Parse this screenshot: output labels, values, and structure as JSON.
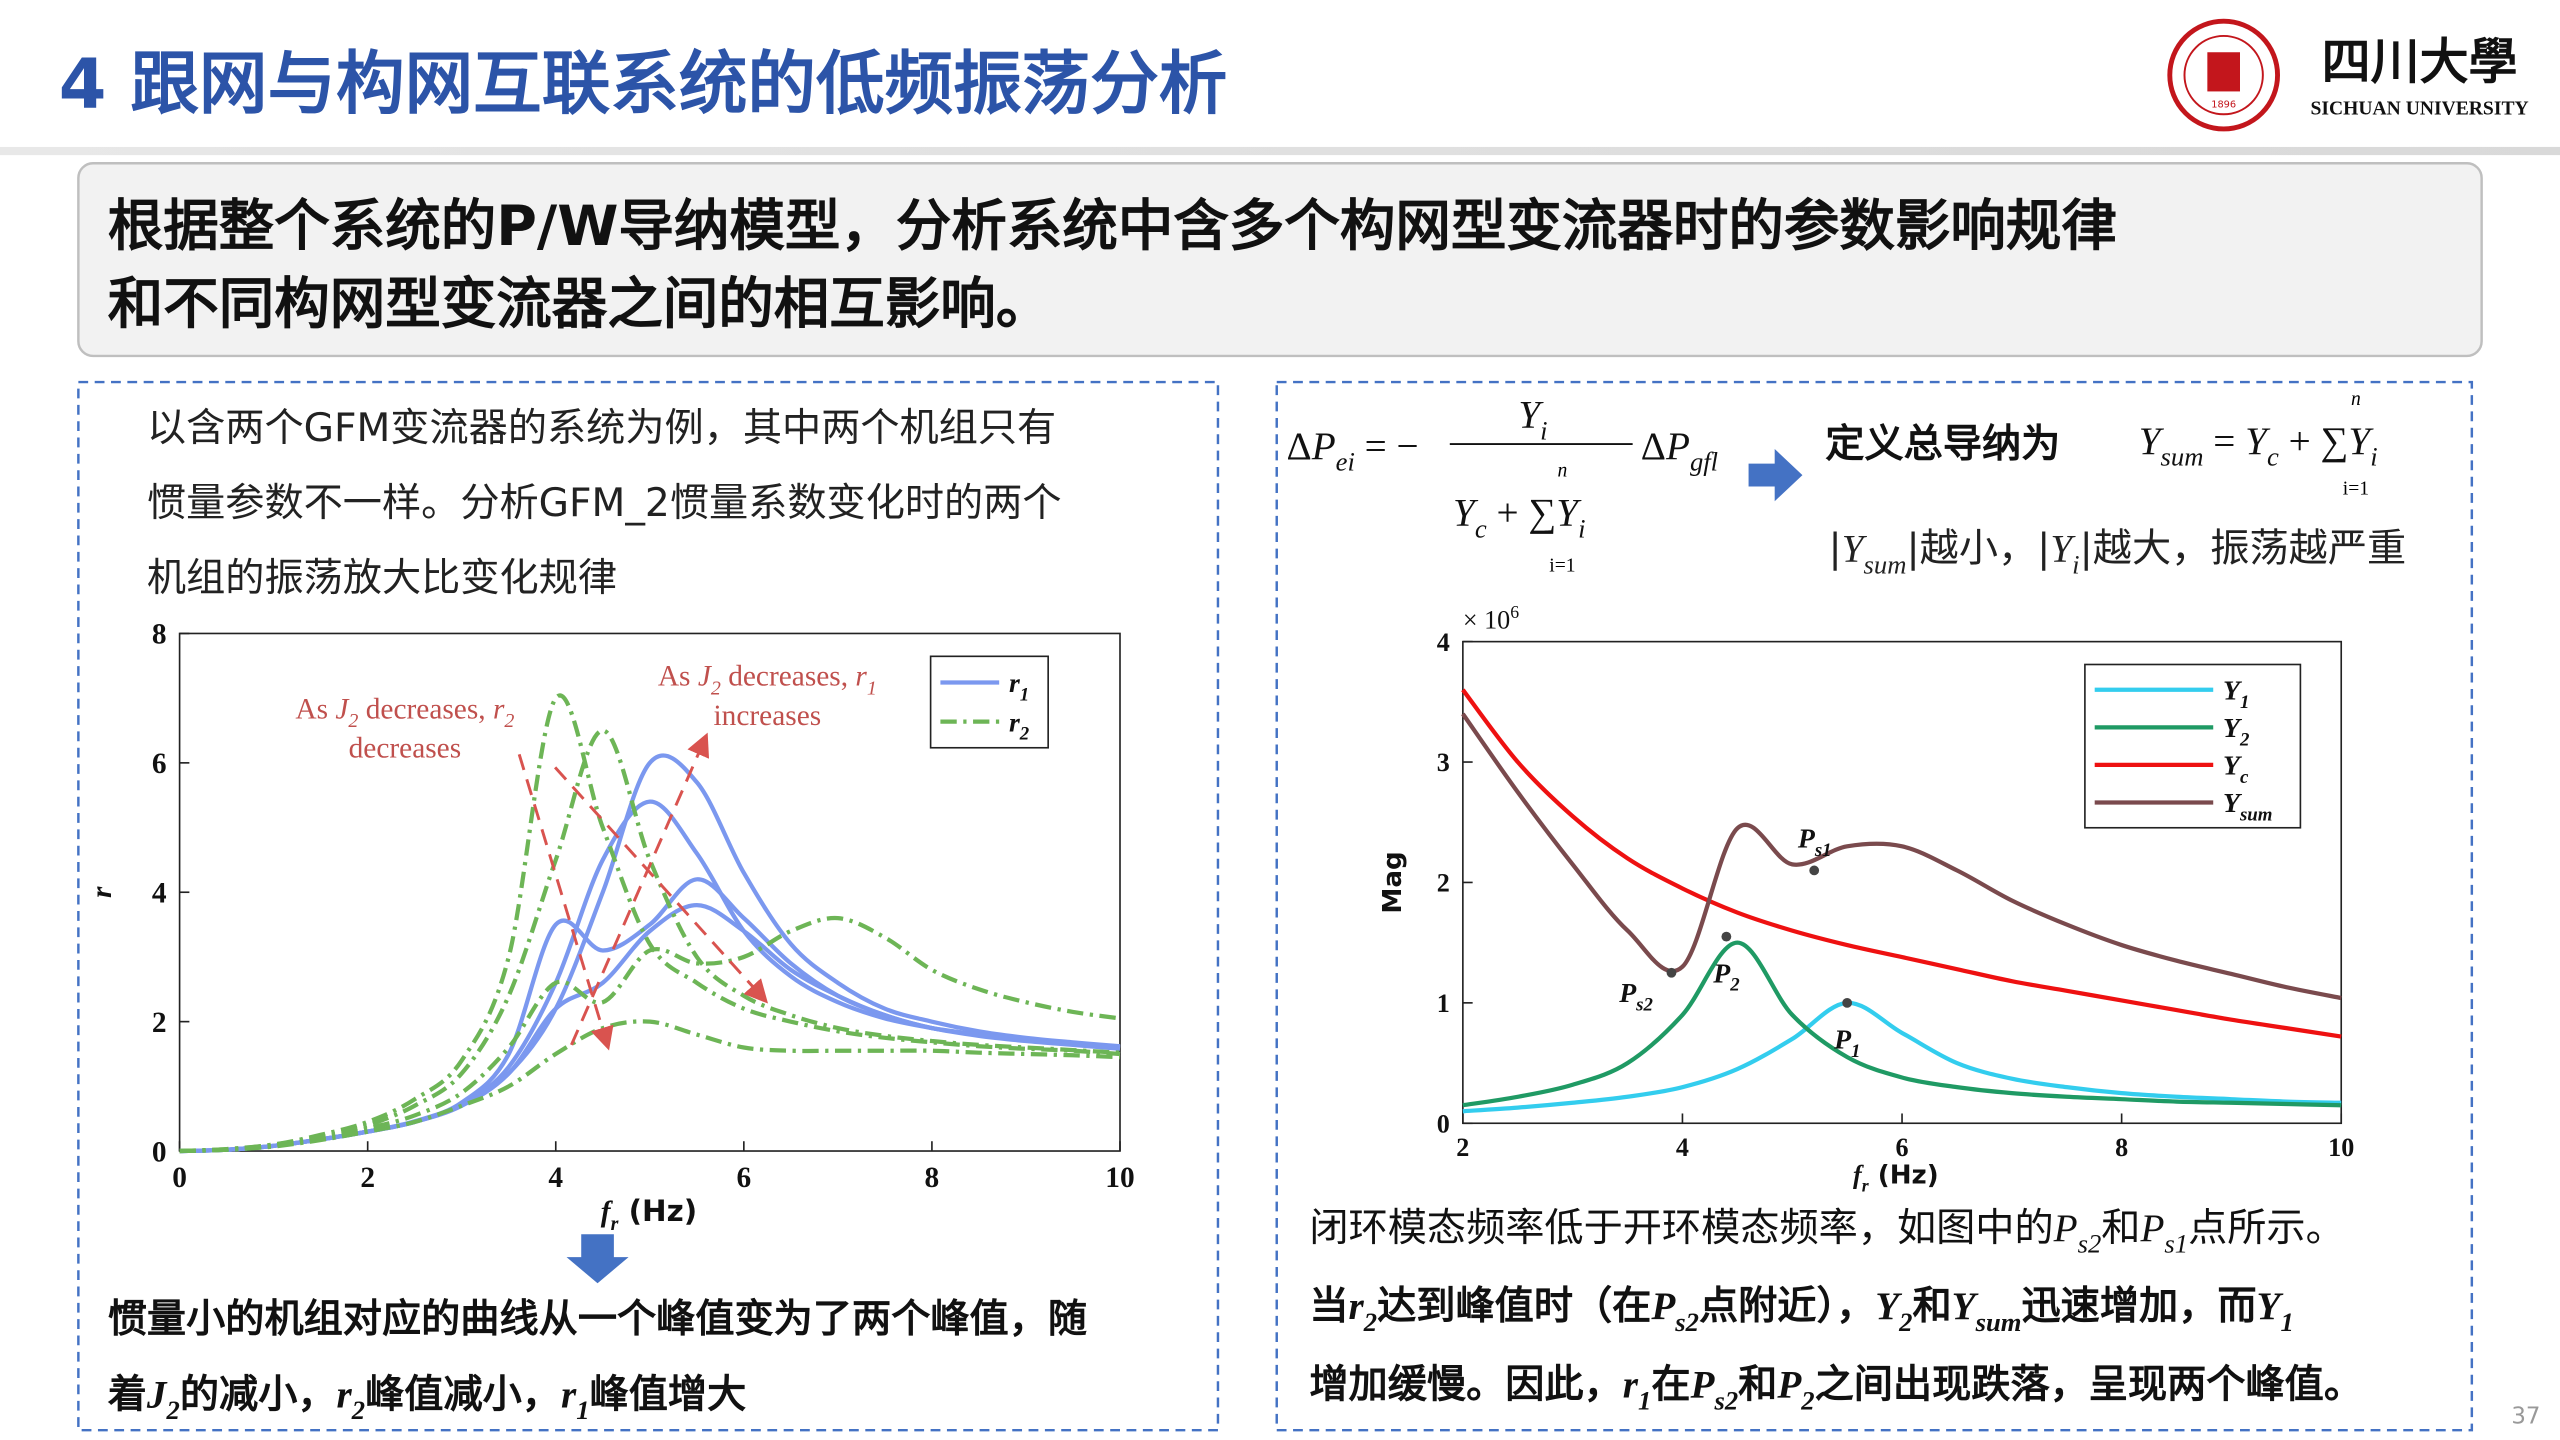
{
  "header": {
    "title": "4 跟网与构网互联系统的低频振荡分析",
    "logo_name": "四川大學",
    "logo_en": "SICHUAN UNIVERSITY",
    "seal_year": "1896"
  },
  "banner": {
    "lines": [
      "根据整个系统的P/W导纳模型，分析系统中含多个构网型变流器时的参数影响规律",
      "和不同构网型变流器之间的相互影响。"
    ]
  },
  "left_panel": {
    "intro": [
      "以含两个GFM变流器的系统为例，其中两个机组只有",
      "惯量参数不一样。分析GFM_2惯量系数变化时的两个",
      "机组的振荡放大比变化规律"
    ],
    "conclusion": [
      [
        "惯量小的机组对应的曲线从一个峰值变为了两个峰值，随"
      ],
      [
        "着",
        {
          "i": "J",
          "sub": "2"
        },
        "的减小，",
        {
          "i": "r",
          "sub": "2"
        },
        "峰值减小，",
        {
          "i": "r",
          "sub": "1"
        },
        "峰值增大"
      ]
    ]
  },
  "right_panel": {
    "formula_1": {
      "lhs": [
        "Δ",
        {
          "i": "P",
          "sub": "ei"
        },
        " = −"
      ],
      "numerator": [
        {
          "i": "Y",
          "sub": "i"
        }
      ],
      "denominator": [
        {
          "i": "Y",
          "sub": "c"
        },
        " + ",
        "∑",
        {
          "i": "Y",
          "sub": "i"
        }
      ],
      "sum_upper": "n",
      "sum_lower": "i=1",
      "rhs": [
        "Δ",
        {
          "i": "P",
          "sub": "gfl"
        }
      ]
    },
    "definition": "定义总导纳为",
    "formula_2": {
      "expr": [
        {
          "i": "Y",
          "sub": "sum"
        },
        " = ",
        {
          "i": "Y",
          "sub": "c"
        },
        " + ",
        "∑",
        {
          "i": "Y",
          "sub": "i"
        }
      ],
      "sum_upper": "n",
      "sum_lower": "i=1"
    },
    "rule": [
      "|",
      {
        "i": "Y",
        "sub": "sum"
      },
      "|越小，|",
      {
        "i": "Y",
        "sub": "i"
      },
      "|越大，振荡越严重"
    ],
    "conclusion": [
      [
        "闭环模态频率低于开环模态频率，如图中的",
        {
          "i": "P",
          "sub": "s2"
        },
        "和",
        {
          "i": "P",
          "sub": "s1"
        },
        "点所示。"
      ],
      [
        "当",
        {
          "i": "r",
          "sub": "2"
        },
        "达到峰值时（在",
        {
          "i": "P",
          "sub": "s2"
        },
        "点附近），",
        {
          "i": "Y",
          "sub": "2"
        },
        "和",
        {
          "i": "Y",
          "sub": "sum"
        },
        "迅速增加，而",
        {
          "i": "Y",
          "sub": "1"
        }
      ],
      [
        "增加缓慢。因此，",
        {
          "i": "r",
          "sub": "1"
        },
        "在",
        {
          "i": "P",
          "sub": "s2"
        },
        "和",
        {
          "i": "P",
          "sub": "2"
        },
        "之间出现跌落，呈现两个峰值。"
      ]
    ]
  },
  "chart_data": [
    {
      "type": "line",
      "x": [
        0,
        0.5,
        1,
        1.5,
        2,
        2.5,
        3,
        3.5,
        4,
        4.5,
        5,
        5.5,
        6,
        6.5,
        7,
        7.5,
        8,
        8.5,
        9,
        9.5,
        10
      ],
      "xlim": [
        0,
        10
      ],
      "ylim": [
        0,
        8
      ],
      "xticks": [
        0,
        2,
        4,
        6,
        8,
        10
      ],
      "yticks": [
        0,
        2,
        4,
        6,
        8
      ],
      "x_label": [
        {
          "i": "f",
          "sub": "r"
        },
        " (Hz)"
      ],
      "y_label": [
        {
          "i": "r"
        }
      ],
      "legend": "upper right",
      "series": [
        {
          "name": [
            {
              "i": "r",
              "sub": "1"
            }
          ],
          "color": "#7b98ef",
          "style": "solid",
          "curves": [
            [
              0,
              0.02,
              0.08,
              0.18,
              0.3,
              0.45,
              0.7,
              1.2,
              2.2,
              4.0,
              6.0,
              5.7,
              4.3,
              3.2,
              2.6,
              2.2,
              2.0,
              1.85,
              1.75,
              1.68,
              1.62
            ],
            [
              0,
              0.02,
              0.08,
              0.18,
              0.3,
              0.45,
              0.72,
              1.3,
              2.6,
              4.5,
              5.4,
              4.6,
              3.4,
              2.7,
              2.3,
              2.05,
              1.9,
              1.8,
              1.72,
              1.66,
              1.6
            ],
            [
              0,
              0.02,
              0.08,
              0.18,
              0.3,
              0.46,
              0.75,
              1.5,
              3.5,
              3.1,
              3.5,
              4.2,
              3.6,
              2.9,
              2.4,
              2.1,
              1.9,
              1.8,
              1.72,
              1.65,
              1.6
            ],
            [
              0,
              0.02,
              0.08,
              0.18,
              0.3,
              0.45,
              0.72,
              1.2,
              2.2,
              2.6,
              3.4,
              3.8,
              3.4,
              2.8,
              2.4,
              2.1,
              1.9,
              1.78,
              1.7,
              1.64,
              1.58
            ]
          ]
        },
        {
          "name": [
            {
              "i": "r",
              "sub": "2"
            }
          ],
          "color": "#6db556",
          "style": "dashdot",
          "curves": [
            [
              0,
              0.03,
              0.1,
              0.25,
              0.45,
              0.8,
              1.4,
              3.0,
              7.0,
              5.0,
              3.2,
              2.6,
              2.2,
              2.0,
              1.85,
              1.75,
              1.68,
              1.62,
              1.58,
              1.55,
              1.5
            ],
            [
              0,
              0.03,
              0.1,
              0.22,
              0.4,
              0.7,
              1.2,
              2.4,
              4.5,
              6.5,
              4.5,
              3.0,
              2.4,
              2.1,
              1.9,
              1.78,
              1.7,
              1.64,
              1.6,
              1.56,
              1.52
            ],
            [
              0,
              0.02,
              0.08,
              0.2,
              0.35,
              0.55,
              0.9,
              1.6,
              2.6,
              2.3,
              3.1,
              2.9,
              3.0,
              3.4,
              3.6,
              3.3,
              2.8,
              2.5,
              2.3,
              2.15,
              2.05
            ],
            [
              0,
              0.02,
              0.07,
              0.17,
              0.3,
              0.45,
              0.7,
              1.0,
              1.5,
              1.9,
              2.0,
              1.8,
              1.6,
              1.55,
              1.55,
              1.55,
              1.55,
              1.52,
              1.5,
              1.48,
              1.45
            ]
          ]
        }
      ],
      "annotations": [
        {
          "lines": [
            [
              "As ",
              {
                "i": "J",
                "sub": "2"
              },
              " decreases, ",
              {
                "i": "r",
                "sub": "2"
              }
            ],
            [
              "decreases"
            ]
          ],
          "color": "#c0504d"
        },
        {
          "lines": [
            [
              "As ",
              {
                "i": "J",
                "sub": "2"
              },
              " decreases, ",
              {
                "i": "r",
                "sub": "1"
              }
            ],
            [
              "increases"
            ]
          ],
          "color": "#c0504d"
        }
      ]
    },
    {
      "type": "line",
      "x": [
        2,
        2.5,
        3,
        3.5,
        4,
        4.5,
        5,
        5.5,
        6,
        6.5,
        7,
        7.5,
        8,
        8.5,
        9,
        9.5,
        10
      ],
      "xlim": [
        2,
        10
      ],
      "ylim": [
        0,
        4
      ],
      "xticks": [
        2,
        4,
        6,
        8,
        10
      ],
      "yticks": [
        0,
        1,
        2,
        3,
        4
      ],
      "y_multiplier": [
        "× 10",
        {
          "sup": "6"
        }
      ],
      "x_label": [
        {
          "i": "f",
          "sub": "r"
        },
        " (Hz)"
      ],
      "y_label": [
        "Mag"
      ],
      "legend": "upper right",
      "series": [
        {
          "name": [
            {
              "i": "Y",
              "sub": "1"
            }
          ],
          "color": "#33cdee",
          "values": [
            0.1,
            0.13,
            0.17,
            0.22,
            0.3,
            0.45,
            0.7,
            1.0,
            0.75,
            0.5,
            0.37,
            0.3,
            0.25,
            0.22,
            0.2,
            0.18,
            0.17
          ]
        },
        {
          "name": [
            {
              "i": "Y",
              "sub": "2"
            }
          ],
          "color": "#1f9a64",
          "values": [
            0.15,
            0.22,
            0.32,
            0.5,
            0.9,
            1.5,
            0.9,
            0.55,
            0.38,
            0.3,
            0.25,
            0.22,
            0.2,
            0.18,
            0.17,
            0.16,
            0.15
          ]
        },
        {
          "name": [
            {
              "i": "Y",
              "sub": "c"
            }
          ],
          "color": "#ee1111",
          "values": [
            3.6,
            3.0,
            2.55,
            2.2,
            1.95,
            1.75,
            1.6,
            1.48,
            1.38,
            1.28,
            1.18,
            1.1,
            1.02,
            0.94,
            0.86,
            0.79,
            0.72
          ]
        },
        {
          "name": [
            {
              "i": "Y",
              "sub": "sum"
            }
          ],
          "color": "#7a4a4d",
          "values": [
            3.4,
            2.75,
            2.15,
            1.6,
            1.3,
            2.45,
            2.15,
            2.3,
            2.3,
            2.1,
            1.85,
            1.65,
            1.48,
            1.35,
            1.24,
            1.13,
            1.04
          ]
        }
      ],
      "points": [
        {
          "label": [
            {
              "i": "P",
              "sub": "s2"
            }
          ],
          "x": 3.9,
          "y": 1.25
        },
        {
          "label": [
            {
              "i": "P",
              "sub": "2"
            }
          ],
          "x": 4.4,
          "y": 1.55
        },
        {
          "label": [
            {
              "i": "P",
              "sub": "s1"
            }
          ],
          "x": 5.2,
          "y": 2.1
        },
        {
          "label": [
            {
              "i": "P",
              "sub": "1"
            }
          ],
          "x": 5.5,
          "y": 1.0
        }
      ]
    }
  ],
  "page_number": "37"
}
